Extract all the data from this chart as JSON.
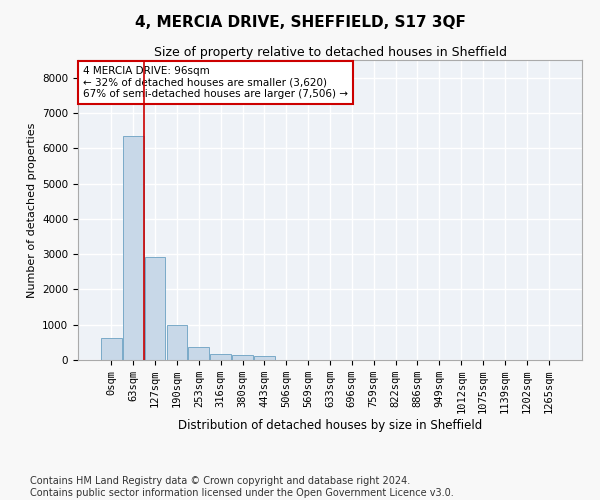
{
  "title": "4, MERCIA DRIVE, SHEFFIELD, S17 3QF",
  "subtitle": "Size of property relative to detached houses in Sheffield",
  "xlabel": "Distribution of detached houses by size in Sheffield",
  "ylabel": "Number of detached properties",
  "bar_color": "#c8d8e8",
  "bar_edge_color": "#7aaac8",
  "vline_color": "#cc0000",
  "vline_x": 1.5,
  "annotation_text": "4 MERCIA DRIVE: 96sqm\n← 32% of detached houses are smaller (3,620)\n67% of semi-detached houses are larger (7,506) →",
  "annotation_box_color": "#cc0000",
  "categories": [
    "0sqm",
    "63sqm",
    "127sqm",
    "190sqm",
    "253sqm",
    "316sqm",
    "380sqm",
    "443sqm",
    "506sqm",
    "569sqm",
    "633sqm",
    "696sqm",
    "759sqm",
    "822sqm",
    "886sqm",
    "949sqm",
    "1012sqm",
    "1075sqm",
    "1139sqm",
    "1202sqm",
    "1265sqm"
  ],
  "values": [
    620,
    6350,
    2920,
    1000,
    380,
    175,
    130,
    100,
    0,
    0,
    0,
    0,
    0,
    0,
    0,
    0,
    0,
    0,
    0,
    0,
    0
  ],
  "ylim": [
    0,
    8500
  ],
  "yticks": [
    0,
    1000,
    2000,
    3000,
    4000,
    5000,
    6000,
    7000,
    8000
  ],
  "background_color": "#eef2f7",
  "grid_color": "#ffffff",
  "fig_facecolor": "#f8f8f8",
  "footer_line1": "Contains HM Land Registry data © Crown copyright and database right 2024.",
  "footer_line2": "Contains public sector information licensed under the Open Government Licence v3.0.",
  "title_fontsize": 11,
  "subtitle_fontsize": 9,
  "xlabel_fontsize": 8.5,
  "ylabel_fontsize": 8,
  "tick_fontsize": 7.5,
  "annot_fontsize": 7.5,
  "footer_fontsize": 7
}
